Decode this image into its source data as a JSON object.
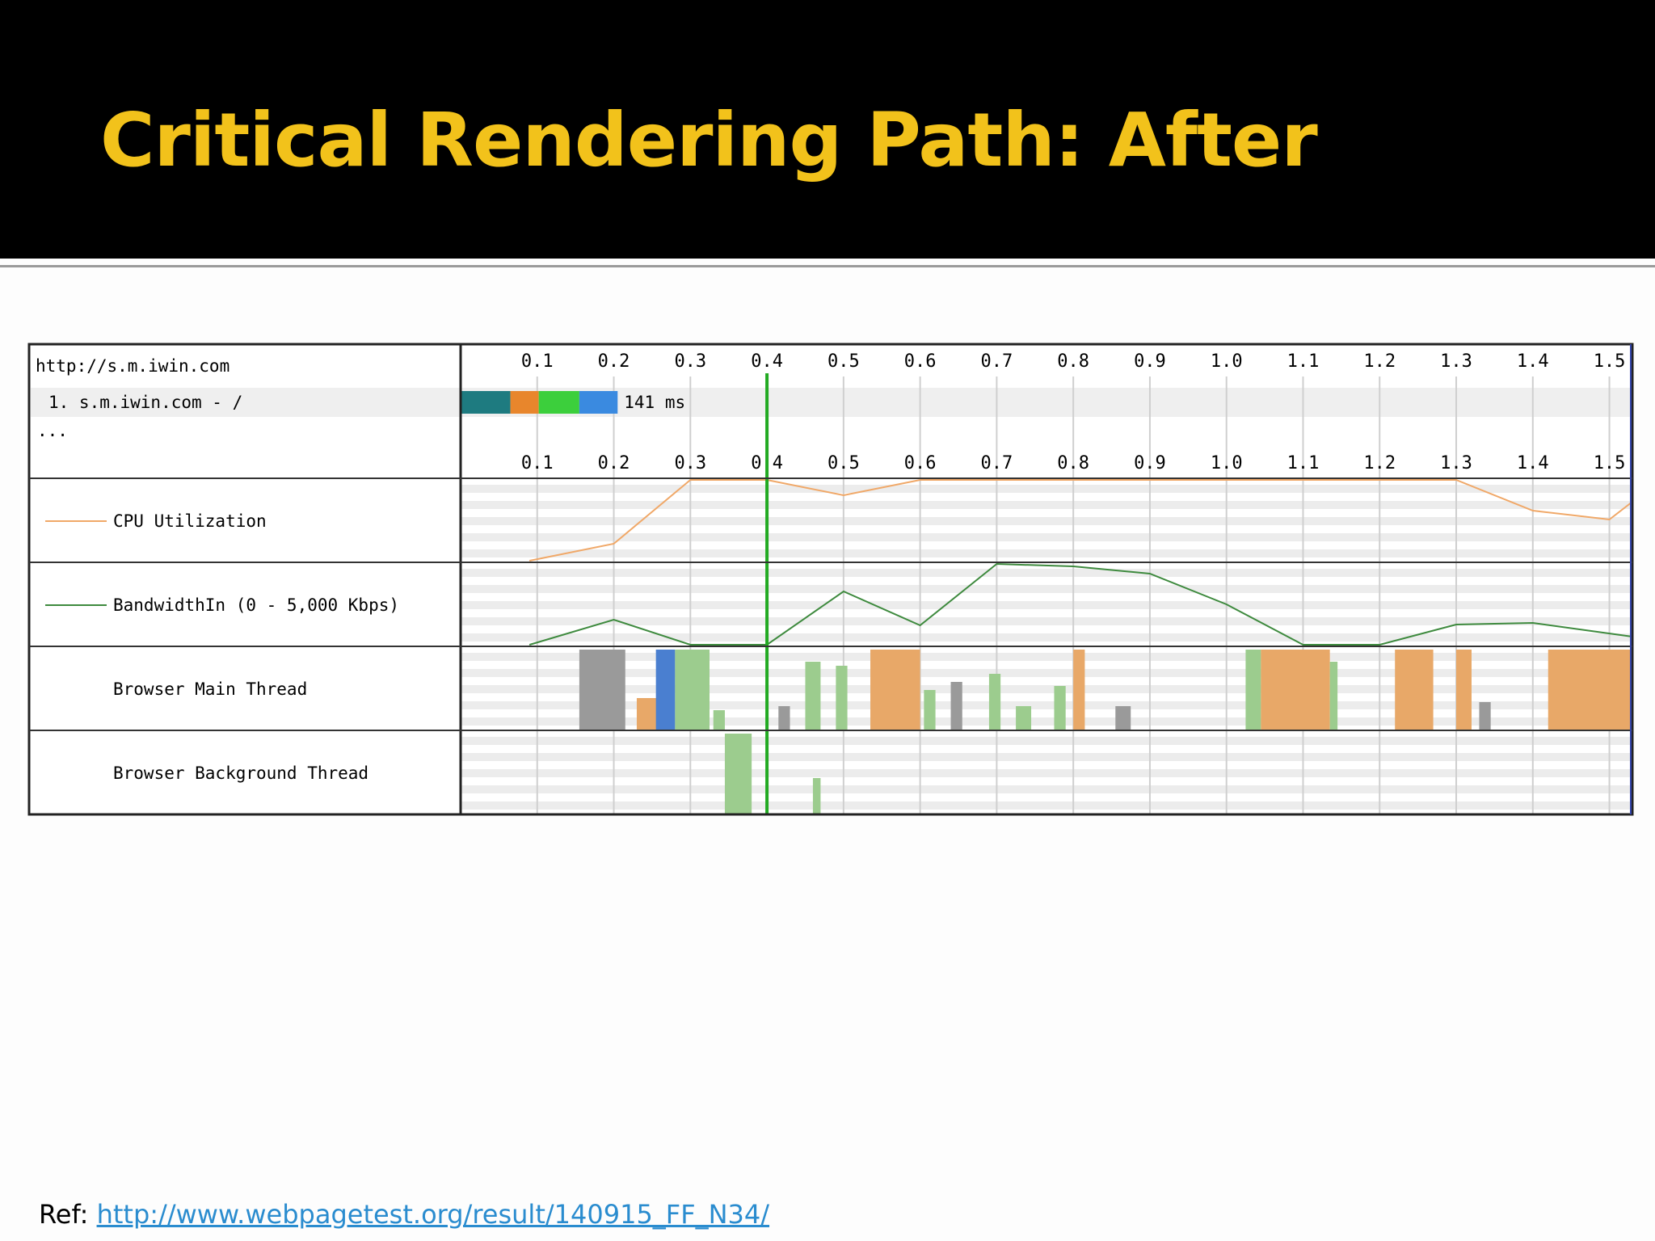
{
  "slide": {
    "title": "Critical Rendering Path: After",
    "ref_prefix": "Ref: ",
    "ref_link": "http://www.webpagetest.org/result/140915_FF_N34/"
  },
  "colors": {
    "title": "#f2c21b",
    "cpu": "#f0a868",
    "bandwidth": "#3e8a3e",
    "start_render": "#22aa22",
    "link": "#2a8ccf",
    "thread_orange": "#e8a868",
    "thread_green": "#9ccc8e",
    "thread_blue": "#4a7fd0",
    "thread_gray": "#9a9a9a"
  },
  "chart_data": {
    "type": "waterfall",
    "page_url": "http://s.m.iwin.com",
    "ellipsis": "...",
    "x_ticks": [
      "0.1",
      "0.2",
      "0.3",
      "0.4",
      "0.5",
      "0.6",
      "0.7",
      "0.8",
      "0.9",
      "1.0",
      "1.1",
      "1.2",
      "1.3",
      "1.4",
      "1.5"
    ],
    "x_range": [
      0,
      1.53
    ],
    "start_render_marker": 0.4,
    "request": {
      "label": "1. s.m.iwin.com - /",
      "duration_label": "141 ms",
      "segments": [
        {
          "phase": "dns",
          "start": 0.0,
          "end": 0.065,
          "color": "#1e7b80"
        },
        {
          "phase": "connect",
          "start": 0.065,
          "end": 0.102,
          "color": "#e8862c"
        },
        {
          "phase": "ttfb",
          "start": 0.102,
          "end": 0.155,
          "color": "#3ccf3c"
        },
        {
          "phase": "download",
          "start": 0.155,
          "end": 0.205,
          "color": "#3a8ae0"
        }
      ]
    },
    "rows": [
      {
        "label": "CPU Utilization",
        "unit": "%",
        "points": [
          [
            0.09,
            0
          ],
          [
            0.2,
            21
          ],
          [
            0.3,
            100
          ],
          [
            0.4,
            100
          ],
          [
            0.5,
            81
          ],
          [
            0.6,
            100
          ],
          [
            0.7,
            100
          ],
          [
            0.8,
            100
          ],
          [
            0.9,
            100
          ],
          [
            1.0,
            100
          ],
          [
            1.1,
            100
          ],
          [
            1.2,
            100
          ],
          [
            1.3,
            100
          ],
          [
            1.4,
            62
          ],
          [
            1.5,
            51
          ],
          [
            1.53,
            73
          ]
        ]
      },
      {
        "label": "BandwidthIn (0 - 5,000 Kbps)",
        "unit": "Kbps",
        "points": [
          [
            0.09,
            0
          ],
          [
            0.2,
            1550
          ],
          [
            0.3,
            0
          ],
          [
            0.4,
            0
          ],
          [
            0.5,
            3300
          ],
          [
            0.6,
            1200
          ],
          [
            0.7,
            5000
          ],
          [
            0.8,
            4850
          ],
          [
            0.9,
            4400
          ],
          [
            1.0,
            2500
          ],
          [
            1.1,
            0
          ],
          [
            1.2,
            0
          ],
          [
            1.3,
            1250
          ],
          [
            1.4,
            1350
          ],
          [
            1.53,
            500
          ]
        ]
      },
      {
        "label": "Browser Main Thread",
        "bars": [
          {
            "start": 0.155,
            "end": 0.215,
            "height": 100,
            "color": "gray"
          },
          {
            "start": 0.23,
            "end": 0.26,
            "height": 40,
            "color": "orange"
          },
          {
            "start": 0.255,
            "end": 0.28,
            "height": 100,
            "color": "blue"
          },
          {
            "start": 0.28,
            "end": 0.325,
            "height": 100,
            "color": "green"
          },
          {
            "start": 0.33,
            "end": 0.345,
            "height": 25,
            "color": "green"
          },
          {
            "start": 0.415,
            "end": 0.43,
            "height": 30,
            "color": "gray"
          },
          {
            "start": 0.45,
            "end": 0.47,
            "height": 85,
            "color": "green"
          },
          {
            "start": 0.49,
            "end": 0.505,
            "height": 80,
            "color": "green"
          },
          {
            "start": 0.535,
            "end": 0.6,
            "height": 100,
            "color": "orange"
          },
          {
            "start": 0.605,
            "end": 0.62,
            "height": 50,
            "color": "green"
          },
          {
            "start": 0.64,
            "end": 0.655,
            "height": 60,
            "color": "gray"
          },
          {
            "start": 0.69,
            "end": 0.705,
            "height": 70,
            "color": "green"
          },
          {
            "start": 0.725,
            "end": 0.745,
            "height": 30,
            "color": "green"
          },
          {
            "start": 0.775,
            "end": 0.79,
            "height": 55,
            "color": "green"
          },
          {
            "start": 0.8,
            "end": 0.815,
            "height": 100,
            "color": "orange"
          },
          {
            "start": 0.855,
            "end": 0.875,
            "height": 30,
            "color": "gray"
          },
          {
            "start": 1.025,
            "end": 1.045,
            "height": 100,
            "color": "green"
          },
          {
            "start": 1.045,
            "end": 1.135,
            "height": 100,
            "color": "orange"
          },
          {
            "start": 1.135,
            "end": 1.145,
            "height": 85,
            "color": "green"
          },
          {
            "start": 1.22,
            "end": 1.27,
            "height": 100,
            "color": "orange"
          },
          {
            "start": 1.3,
            "end": 1.32,
            "height": 100,
            "color": "orange"
          },
          {
            "start": 1.33,
            "end": 1.345,
            "height": 35,
            "color": "gray"
          },
          {
            "start": 1.42,
            "end": 1.53,
            "height": 100,
            "color": "orange"
          }
        ]
      },
      {
        "label": "Browser Background Thread",
        "bars": [
          {
            "start": 0.345,
            "end": 0.38,
            "height": 100,
            "color": "green"
          },
          {
            "start": 0.46,
            "end": 0.47,
            "height": 45,
            "color": "green"
          }
        ]
      }
    ]
  }
}
